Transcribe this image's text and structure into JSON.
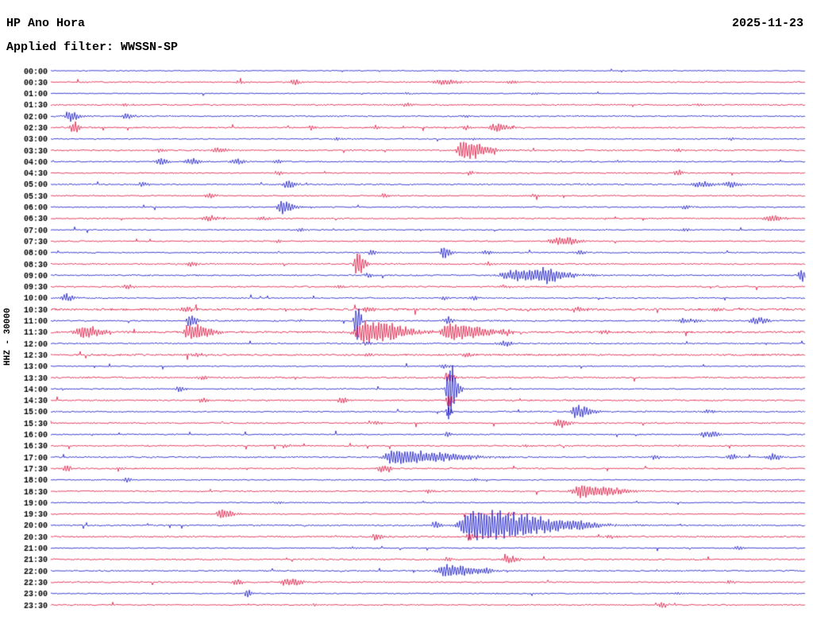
{
  "header": {
    "station": "HP Ano Hora",
    "date": "2025-11-23",
    "filter": "Applied filter: WWSSN-SP"
  },
  "axis": {
    "ylabel": "HHZ - 30000",
    "x_start": "00:00",
    "minutes_per_line": 30,
    "lines": 48
  },
  "chart_data": {
    "type": "line",
    "title": "HP Ano Hora helicorder seismogram",
    "ylabel": "HHZ - 30000",
    "trace_colors": {
      "blue": "#1010c8",
      "red": "#e0103c"
    },
    "row_format": [
      "time_label",
      "color",
      "noise_amp_px",
      "events[x_fraction, amplitude_px, width_px, coda_tail]"
    ],
    "rows": [
      [
        "00:00",
        "blue",
        0.6,
        []
      ],
      [
        "00:30",
        "red",
        0.8,
        [
          [
            0.322,
            5,
            3,
            1
          ],
          [
            0.52,
            4,
            8,
            1
          ],
          [
            0.61,
            3,
            5,
            1
          ],
          [
            0.25,
            2,
            4,
            1
          ]
        ]
      ],
      [
        "01:00",
        "blue",
        0.6,
        [
          [
            0.47,
            2,
            3,
            1
          ],
          [
            0.64,
            2,
            3,
            1
          ]
        ]
      ],
      [
        "01:30",
        "red",
        0.9,
        [
          [
            0.47,
            3,
            4,
            1
          ],
          [
            0.1,
            2,
            3,
            1
          ],
          [
            0.86,
            2,
            3,
            1
          ]
        ]
      ],
      [
        "02:00",
        "blue",
        0.8,
        [
          [
            0.025,
            7,
            5,
            1
          ],
          [
            0.1,
            4,
            4,
            1
          ],
          [
            0.55,
            2,
            3,
            1
          ]
        ]
      ],
      [
        "02:30",
        "red",
        0.9,
        [
          [
            0.03,
            8,
            3,
            1
          ],
          [
            0.345,
            4,
            2,
            1
          ],
          [
            0.43,
            3,
            2,
            1
          ],
          [
            0.59,
            6,
            6,
            1
          ],
          [
            0.55,
            3,
            3,
            1
          ]
        ]
      ],
      [
        "03:00",
        "blue",
        0.7,
        [
          [
            0.38,
            3,
            3,
            1
          ],
          [
            0.56,
            2,
            3,
            1
          ],
          [
            0.9,
            2,
            3,
            1
          ]
        ]
      ],
      [
        "03:30",
        "red",
        0.9,
        [
          [
            0.545,
            14,
            4,
            3
          ],
          [
            0.22,
            4,
            5,
            1
          ],
          [
            0.145,
            3,
            3,
            1
          ],
          [
            0.83,
            2,
            3,
            1
          ]
        ]
      ],
      [
        "04:00",
        "blue",
        0.8,
        [
          [
            0.145,
            5,
            4,
            1
          ],
          [
            0.185,
            5,
            5,
            1
          ],
          [
            0.245,
            4,
            4,
            1
          ],
          [
            0.3,
            3,
            3,
            1
          ],
          [
            0.75,
            2,
            3,
            1
          ]
        ]
      ],
      [
        "04:30",
        "red",
        0.8,
        [
          [
            0.3,
            3,
            3,
            1
          ],
          [
            0.555,
            3,
            3,
            1
          ],
          [
            0.83,
            3,
            4,
            1
          ]
        ]
      ],
      [
        "05:00",
        "blue",
        0.8,
        [
          [
            0.315,
            6,
            4,
            1
          ],
          [
            0.86,
            4,
            8,
            1
          ],
          [
            0.9,
            4,
            6,
            1
          ],
          [
            0.12,
            3,
            4,
            1
          ]
        ]
      ],
      [
        "05:30",
        "red",
        0.8,
        [
          [
            0.21,
            4,
            4,
            1
          ],
          [
            0.44,
            3,
            3,
            1
          ],
          [
            0.64,
            2,
            3,
            1
          ]
        ]
      ],
      [
        "06:00",
        "blue",
        0.8,
        [
          [
            0.305,
            9,
            3,
            2
          ],
          [
            0.84,
            3,
            4,
            1
          ]
        ]
      ],
      [
        "06:30",
        "red",
        0.8,
        [
          [
            0.21,
            4,
            6,
            1
          ],
          [
            0.28,
            3,
            4,
            1
          ],
          [
            0.955,
            5,
            6,
            1
          ]
        ]
      ],
      [
        "07:00",
        "blue",
        0.7,
        [
          [
            0.33,
            3,
            3,
            1
          ],
          [
            0.84,
            2,
            4,
            1
          ]
        ]
      ],
      [
        "07:30",
        "red",
        0.8,
        [
          [
            0.675,
            6,
            10,
            1
          ],
          [
            0.3,
            2,
            3,
            1
          ]
        ]
      ],
      [
        "08:00",
        "blue",
        0.8,
        [
          [
            0.425,
            4,
            3,
            1
          ],
          [
            0.52,
            10,
            2,
            2
          ],
          [
            0.575,
            4,
            3,
            1
          ],
          [
            0.7,
            3,
            3,
            1
          ]
        ]
      ],
      [
        "08:30",
        "red",
        0.9,
        [
          [
            0.185,
            4,
            4,
            1
          ],
          [
            0.405,
            18,
            2,
            2
          ],
          [
            0.58,
            3,
            3,
            1
          ]
        ]
      ],
      [
        "09:00",
        "blue",
        0.9,
        [
          [
            0.615,
            8,
            12,
            2
          ],
          [
            0.655,
            6,
            8,
            1
          ],
          [
            0.995,
            10,
            3,
            1
          ],
          [
            0.42,
            3,
            3,
            1
          ]
        ]
      ],
      [
        "09:30",
        "red",
        0.9,
        [
          [
            0.1,
            3,
            4,
            1
          ],
          [
            0.38,
            3,
            3,
            1
          ],
          [
            0.6,
            3,
            3,
            1
          ]
        ]
      ],
      [
        "10:00",
        "blue",
        0.8,
        [
          [
            0.02,
            6,
            4,
            1
          ],
          [
            0.52,
            3,
            3,
            1
          ],
          [
            0.56,
            3,
            3,
            1
          ]
        ]
      ],
      [
        "10:30",
        "red",
        1.4,
        [
          [
            0.18,
            3,
            5,
            1
          ],
          [
            0.42,
            3,
            4,
            1
          ],
          [
            0.7,
            3,
            4,
            1
          ],
          [
            0.88,
            3,
            4,
            1
          ]
        ]
      ],
      [
        "11:00",
        "blue",
        0.9,
        [
          [
            0.183,
            10,
            2,
            2
          ],
          [
            0.405,
            26,
            2,
            1
          ],
          [
            0.525,
            6,
            3,
            1
          ],
          [
            0.84,
            4,
            6,
            1
          ],
          [
            0.935,
            5,
            6,
            1
          ]
        ]
      ],
      [
        "11:30",
        "red",
        1.3,
        [
          [
            0.045,
            9,
            8,
            1
          ],
          [
            0.185,
            12,
            5,
            2
          ],
          [
            0.415,
            16,
            7,
            3
          ],
          [
            0.525,
            13,
            6,
            3
          ],
          [
            0.6,
            5,
            4,
            1
          ],
          [
            0.73,
            3,
            4,
            1
          ]
        ]
      ],
      [
        "12:00",
        "blue",
        0.8,
        [
          [
            0.6,
            4,
            5,
            1
          ],
          [
            0.42,
            3,
            3,
            1
          ]
        ]
      ],
      [
        "12:30",
        "red",
        1.2,
        [
          [
            0.19,
            3,
            4,
            1
          ],
          [
            0.42,
            3,
            4,
            1
          ],
          [
            0.55,
            3,
            4,
            1
          ]
        ]
      ],
      [
        "13:00",
        "blue",
        0.7,
        [
          [
            0.52,
            3,
            3,
            1
          ]
        ]
      ],
      [
        "13:30",
        "red",
        1.0,
        [
          [
            0.525,
            8,
            2,
            2
          ],
          [
            0.2,
            3,
            4,
            1
          ]
        ]
      ],
      [
        "14:00",
        "blue",
        0.8,
        [
          [
            0.527,
            40,
            2,
            2
          ],
          [
            0.17,
            4,
            3,
            1
          ]
        ]
      ],
      [
        "14:30",
        "red",
        0.9,
        [
          [
            0.385,
            5,
            3,
            1
          ],
          [
            0.527,
            10,
            2,
            1
          ],
          [
            0.2,
            3,
            3,
            1
          ]
        ]
      ],
      [
        "15:00",
        "blue",
        0.8,
        [
          [
            0.695,
            9,
            4,
            2
          ],
          [
            0.527,
            8,
            2,
            1
          ],
          [
            0.87,
            3,
            3,
            1
          ]
        ]
      ],
      [
        "15:30",
        "red",
        0.9,
        [
          [
            0.675,
            6,
            5,
            1
          ],
          [
            0.43,
            3,
            3,
            1
          ]
        ]
      ],
      [
        "16:00",
        "blue",
        0.8,
        [
          [
            0.87,
            5,
            6,
            1
          ],
          [
            0.525,
            4,
            2,
            1
          ]
        ]
      ],
      [
        "16:30",
        "red",
        0.9,
        [
          [
            0.31,
            3,
            3,
            1
          ],
          [
            0.63,
            3,
            3,
            1
          ]
        ]
      ],
      [
        "17:00",
        "blue",
        0.9,
        [
          [
            0.455,
            10,
            8,
            4
          ],
          [
            0.9,
            4,
            4,
            1
          ],
          [
            0.955,
            5,
            5,
            1
          ],
          [
            0.8,
            3,
            3,
            1
          ]
        ]
      ],
      [
        "17:30",
        "red",
        0.9,
        [
          [
            0.44,
            6,
            5,
            1
          ],
          [
            0.02,
            5,
            3,
            1
          ],
          [
            0.09,
            3,
            3,
            1
          ]
        ]
      ],
      [
        "18:00",
        "blue",
        0.7,
        [
          [
            0.1,
            3,
            3,
            1
          ],
          [
            0.56,
            2,
            3,
            1
          ]
        ]
      ],
      [
        "18:30",
        "red",
        0.9,
        [
          [
            0.705,
            9,
            9,
            2
          ],
          [
            0.5,
            3,
            3,
            1
          ]
        ]
      ],
      [
        "19:00",
        "blue",
        0.7,
        [
          [
            0.3,
            2,
            3,
            1
          ]
        ]
      ],
      [
        "19:30",
        "red",
        0.8,
        [
          [
            0.225,
            8,
            3,
            2
          ],
          [
            0.61,
            3,
            3,
            1
          ]
        ]
      ],
      [
        "20:00",
        "blue",
        0.9,
        [
          [
            0.555,
            22,
            8,
            5
          ],
          [
            0.51,
            6,
            3,
            1
          ],
          [
            0.7,
            4,
            4,
            1
          ]
        ]
      ],
      [
        "20:30",
        "red",
        1.0,
        [
          [
            0.43,
            4,
            4,
            1
          ],
          [
            0.555,
            6,
            3,
            1
          ],
          [
            0.74,
            3,
            3,
            1
          ]
        ]
      ],
      [
        "21:00",
        "blue",
        0.7,
        [
          [
            0.91,
            3,
            3,
            1
          ],
          [
            0.4,
            2,
            3,
            1
          ]
        ]
      ],
      [
        "21:30",
        "red",
        0.9,
        [
          [
            0.605,
            6,
            5,
            1
          ],
          [
            0.525,
            3,
            3,
            1
          ]
        ]
      ],
      [
        "22:00",
        "blue",
        0.8,
        [
          [
            0.525,
            9,
            8,
            2
          ],
          [
            0.575,
            5,
            4,
            1
          ]
        ]
      ],
      [
        "22:30",
        "red",
        0.9,
        [
          [
            0.245,
            5,
            3,
            1
          ],
          [
            0.315,
            6,
            7,
            1
          ],
          [
            0.9,
            3,
            3,
            1
          ]
        ]
      ],
      [
        "23:00",
        "blue",
        0.7,
        [
          [
            0.26,
            5,
            3,
            1
          ],
          [
            0.83,
            2,
            3,
            1
          ]
        ]
      ],
      [
        "23:30",
        "red",
        0.8,
        [
          [
            0.81,
            4,
            3,
            1
          ],
          [
            0.35,
            2,
            3,
            1
          ]
        ]
      ]
    ]
  }
}
